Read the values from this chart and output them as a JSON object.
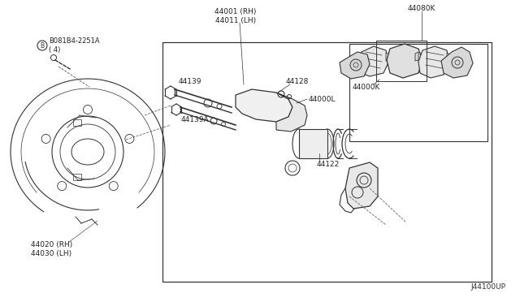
{
  "bg_color": "#ffffff",
  "line_color": "#333333",
  "fig_width": 6.4,
  "fig_height": 3.72,
  "labels": {
    "bolt": "B081B4-2251A\n( 4)",
    "bracket_rh": "44020 (RH)\n44030 (LH)",
    "caliper_rh": "44001 (RH)\n44011 (LH)",
    "pin1": "44139",
    "pin2": "44139A",
    "bolt2": "44128",
    "caliper_assy": "44000L",
    "caliper_kit": "44000K",
    "pad_kit": "44080K",
    "piston": "44122",
    "diagram_id": "J44100UP"
  }
}
